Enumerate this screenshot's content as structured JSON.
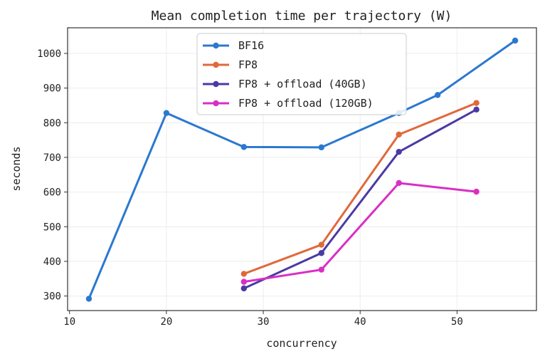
{
  "chart_data": {
    "type": "line",
    "title": "Mean completion time per trajectory (W)",
    "xlabel": "concurrency",
    "ylabel": "seconds",
    "xlim": [
      9.8,
      58.2
    ],
    "ylim": [
      258,
      1074
    ],
    "xticks": [
      10,
      20,
      30,
      40,
      50
    ],
    "yticks": [
      300,
      400,
      500,
      600,
      700,
      800,
      900,
      1000
    ],
    "grid": true,
    "legend_position": "top-center",
    "series": [
      {
        "name": "BF16",
        "color": "#2b78d0",
        "x": [
          12,
          20,
          28,
          36,
          44,
          48,
          56
        ],
        "y": [
          292,
          828,
          730,
          729,
          828,
          880,
          1037
        ]
      },
      {
        "name": "FP8",
        "color": "#e0693a",
        "x": [
          28,
          36,
          44,
          52
        ],
        "y": [
          364,
          448,
          766,
          857
        ]
      },
      {
        "name": "FP8 + offload (40GB)",
        "color": "#4a3aa3",
        "x": [
          28,
          36,
          44,
          52
        ],
        "y": [
          322,
          424,
          716,
          838
        ]
      },
      {
        "name": "FP8 + offload (120GB)",
        "color": "#d92fc4",
        "x": [
          28,
          36,
          44,
          52
        ],
        "y": [
          341,
          376,
          626,
          601
        ]
      }
    ]
  }
}
